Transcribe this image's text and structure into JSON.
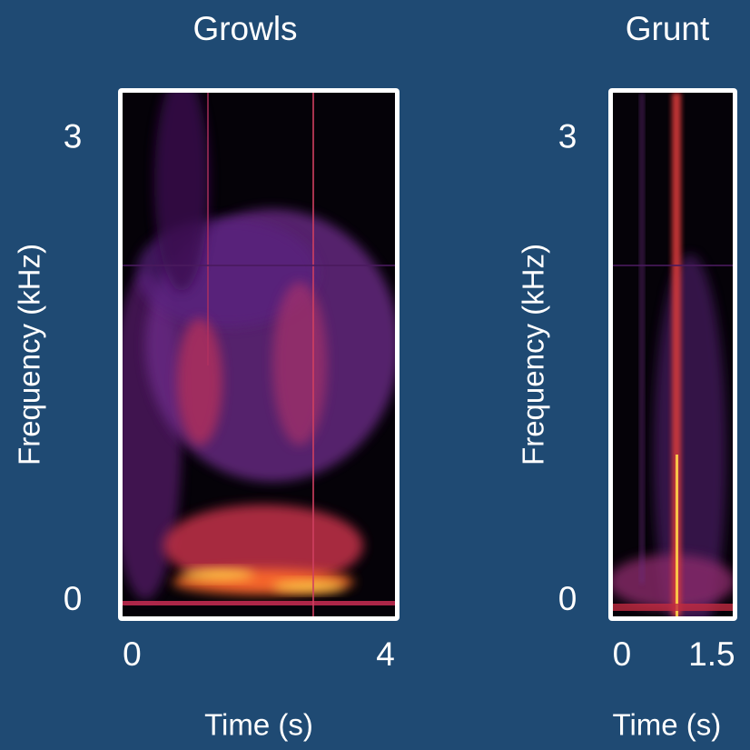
{
  "chart_data": [
    {
      "type": "spectrogram",
      "title": "Growls",
      "xlabel": "Time (s)",
      "ylabel": "Frequency (kHz)",
      "xlim": [
        -0.15,
        4.15
      ],
      "xticks": [
        0,
        4
      ],
      "ylim": [
        -0.1,
        3.3
      ],
      "yticks": [
        0,
        3
      ]
    },
    {
      "type": "spectrogram",
      "title": "Grunt",
      "xlabel": "Time (s)",
      "ylabel": "Frequency (kHz)",
      "xlim": [
        -0.15,
        1.85
      ],
      "xticks": [
        0,
        1.5
      ],
      "ylim": [
        -0.1,
        3.3
      ],
      "yticks": [
        0,
        3
      ]
    }
  ]
}
